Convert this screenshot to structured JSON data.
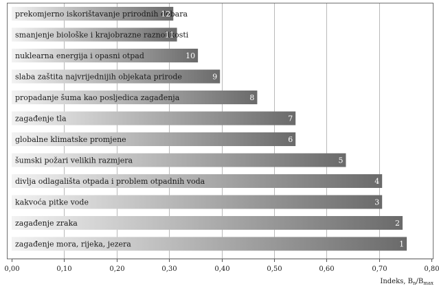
{
  "chart_data": {
    "type": "bar",
    "orientation": "horizontal",
    "title": "",
    "xlabel": "Indeks, B",
    "xlabel_subscript": "n",
    "xlabel_separator": "/B",
    "xlabel_subscript2": "max",
    "ylabel": "",
    "xlim": [
      0,
      0.8
    ],
    "xticks": [
      0,
      0.1,
      0.2,
      0.3,
      0.4,
      0.5,
      0.6,
      0.7,
      0.8
    ],
    "xtick_labels": [
      "0,00",
      "0,10",
      "0,20",
      "0,30",
      "0,40",
      "0,50",
      "0,60",
      "0,70",
      "0,80"
    ],
    "grid": true,
    "bars": [
      {
        "rank": "12",
        "label": "prekomjerno iskorištavanje prirodnih dobara",
        "value": 0.308
      },
      {
        "rank": "11",
        "label": "smanjenje biološke i krajobrazne raznolikosti",
        "value": 0.315
      },
      {
        "rank": "10",
        "label": "nuklearna energija i opasni otpad",
        "value": 0.355
      },
      {
        "rank": "9",
        "label": "slaba zaštita najvrijednijih objekata prirode",
        "value": 0.397
      },
      {
        "rank": "8",
        "label": "propadanje šuma kao posljedica zagađenja",
        "value": 0.468
      },
      {
        "rank": "7",
        "label": "zagađenje tla",
        "value": 0.541
      },
      {
        "rank": "6",
        "label": "globalne klimatske promjene",
        "value": 0.541
      },
      {
        "rank": "5",
        "label": "šumski požari velikih razmjera",
        "value": 0.637
      },
      {
        "rank": "4",
        "label": "divlja odlagališta otpada i problem otpadnih voda",
        "value": 0.706
      },
      {
        "rank": "3",
        "label": "kakvoća pitke vode",
        "value": 0.706
      },
      {
        "rank": "2",
        "label": "zagađenje zraka",
        "value": 0.745
      },
      {
        "rank": "1",
        "label": "zagađenje mora, rijeka, jezera",
        "value": 0.753
      }
    ],
    "colors": {
      "bar_start": "#f2f2f2",
      "bar_end": "#6a6a6a",
      "grid": "#b8b8b8"
    }
  }
}
